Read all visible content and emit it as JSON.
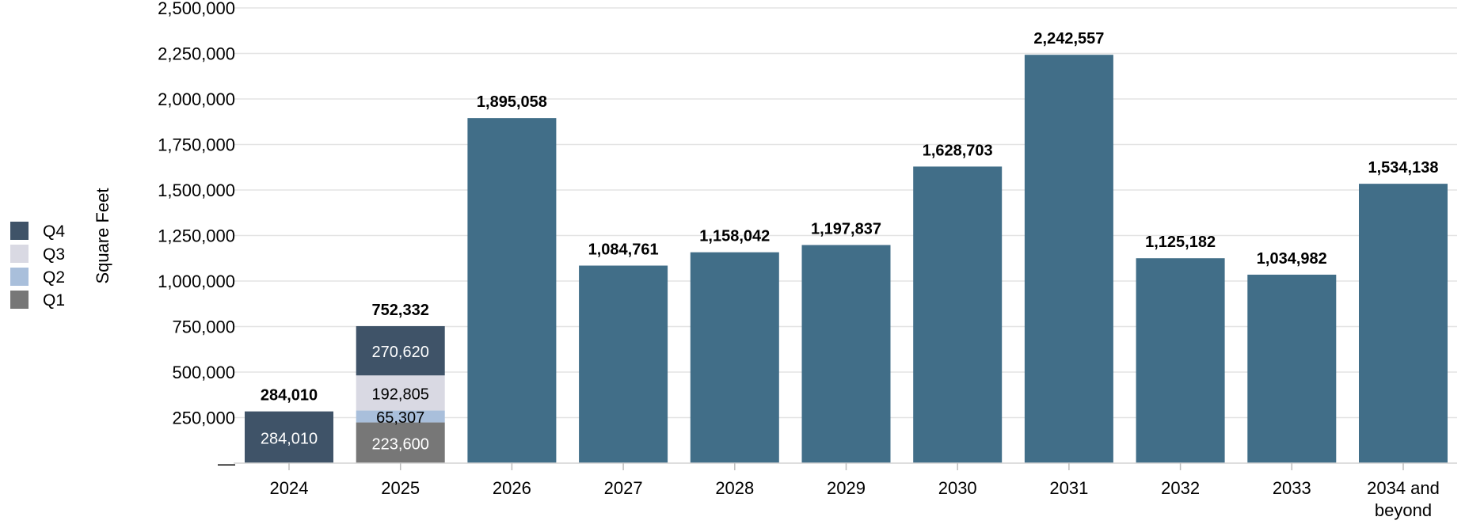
{
  "chart_data": {
    "type": "bar",
    "stacked": true,
    "ylabel": "Square Feet",
    "ylim": [
      0,
      2500000
    ],
    "y_ticks": [
      {
        "value": 0,
        "label": "—"
      },
      {
        "value": 250000,
        "label": "250,000"
      },
      {
        "value": 500000,
        "label": "500,000"
      },
      {
        "value": 750000,
        "label": "750,000"
      },
      {
        "value": 1000000,
        "label": "1,000,000"
      },
      {
        "value": 1250000,
        "label": "1,250,000"
      },
      {
        "value": 1500000,
        "label": "1,500,000"
      },
      {
        "value": 1750000,
        "label": "1,750,000"
      },
      {
        "value": 2000000,
        "label": "2,000,000"
      },
      {
        "value": 2250000,
        "label": "2,250,000"
      },
      {
        "value": 2500000,
        "label": "2,500,000"
      }
    ],
    "grid": true,
    "legend_position": "left",
    "legend": [
      {
        "name": "Q4",
        "color": "#3f5368"
      },
      {
        "name": "Q3",
        "color": "#d9d9e3"
      },
      {
        "name": "Q2",
        "color": "#a9bfdb"
      },
      {
        "name": "Q1",
        "color": "#777777"
      }
    ],
    "bars": [
      {
        "category": [
          "2024"
        ],
        "total_label": "284,010",
        "segments": [
          {
            "name": "Q4",
            "value": 284010,
            "label": "284,010",
            "color": "#3f5368",
            "label_color": "#ffffff"
          }
        ]
      },
      {
        "category": [
          "2025"
        ],
        "total_label": "752,332",
        "segments": [
          {
            "name": "Q1",
            "value": 223600,
            "label": "223,600",
            "color": "#777777",
            "label_color": "#ffffff"
          },
          {
            "name": "Q2",
            "value": 65307,
            "label": "65,307",
            "color": "#a9bfdb",
            "label_color": "#000000"
          },
          {
            "name": "Q3",
            "value": 192805,
            "label": "192,805",
            "color": "#d9d9e3",
            "label_color": "#000000"
          },
          {
            "name": "Q4",
            "value": 270620,
            "label": "270,620",
            "color": "#3f5368",
            "label_color": "#ffffff"
          }
        ]
      },
      {
        "category": [
          "2026"
        ],
        "total_label": "1,895,058",
        "segments": [
          {
            "value": 1895058,
            "color": "#416e88"
          }
        ]
      },
      {
        "category": [
          "2027"
        ],
        "total_label": "1,084,761",
        "segments": [
          {
            "value": 1084761,
            "color": "#416e88"
          }
        ]
      },
      {
        "category": [
          "2028"
        ],
        "total_label": "1,158,042",
        "segments": [
          {
            "value": 1158042,
            "color": "#416e88"
          }
        ]
      },
      {
        "category": [
          "2029"
        ],
        "total_label": "1,197,837",
        "segments": [
          {
            "value": 1197837,
            "color": "#416e88"
          }
        ]
      },
      {
        "category": [
          "2030"
        ],
        "total_label": "1,628,703",
        "segments": [
          {
            "value": 1628703,
            "color": "#416e88"
          }
        ]
      },
      {
        "category": [
          "2031"
        ],
        "total_label": "2,242,557",
        "segments": [
          {
            "value": 2242557,
            "color": "#416e88"
          }
        ]
      },
      {
        "category": [
          "2032"
        ],
        "total_label": "1,125,182",
        "segments": [
          {
            "value": 1125182,
            "color": "#416e88"
          }
        ]
      },
      {
        "category": [
          "2033"
        ],
        "total_label": "1,034,982",
        "segments": [
          {
            "value": 1034982,
            "color": "#416e88"
          }
        ]
      },
      {
        "category": [
          "2034 and",
          "beyond"
        ],
        "total_label": "1,534,138",
        "segments": [
          {
            "value": 1534138,
            "color": "#416e88"
          }
        ]
      }
    ]
  }
}
